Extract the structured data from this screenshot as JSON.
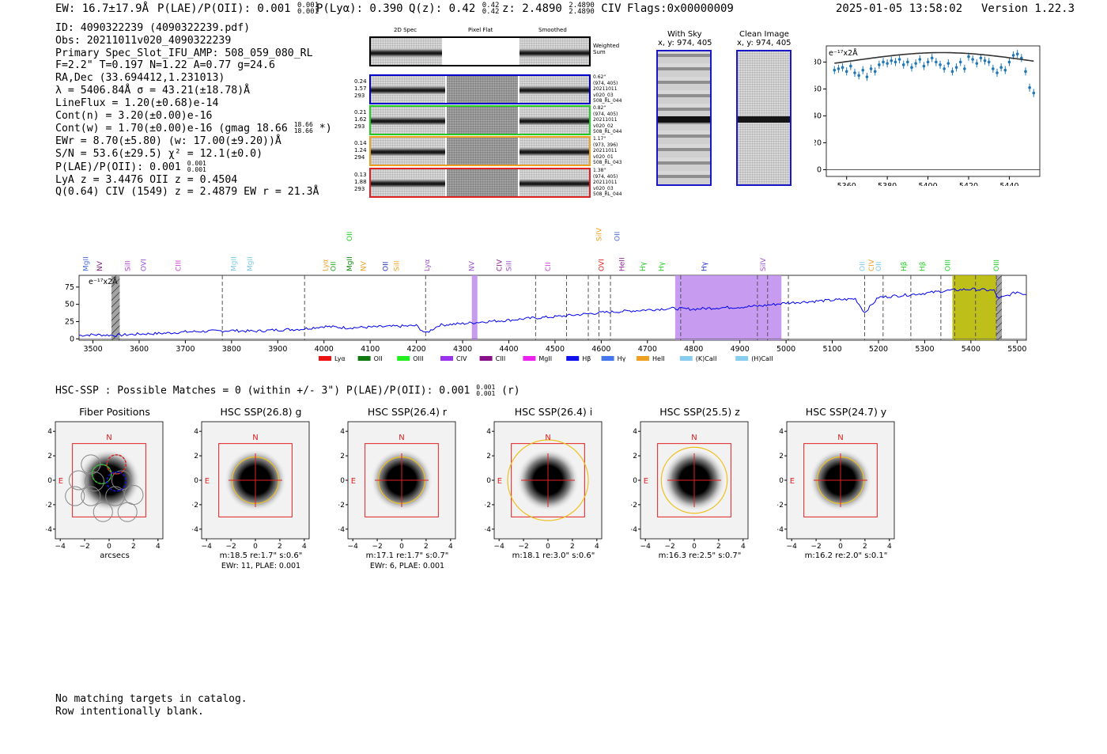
{
  "header": {
    "ew": "EW: 16.7±17.9Å",
    "plae": "P(LAE)/P(OII): 0.001",
    "plae_sup": "0.001",
    "plae_sub": "0.001",
    "plya": "P(Lyα): 0.390",
    "qz": "Q(z): 0.42",
    "qz_sup": "0.42",
    "qz_sub": "0.42",
    "z": "z: 2.4890",
    "z_sup": "2.4890",
    "z_sub": "2.4890",
    "line": "CIV",
    "flags": "Flags:0x00000009",
    "datetime": "2025-01-05 13:58:02",
    "version": "Version 1.22.3"
  },
  "info_lines": [
    "ID: 4090322239 (4090322239.pdf)",
    "Obs: 20211011v020_4090322239",
    "Primary Spec_Slot_IFU_AMP: 508_059_080_RL",
    "F=2.2\"  T=0.197  N=1.22  A=0.77  g=24.6",
    "RA,Dec (33.694412,1.231013)",
    "λ = 5406.84Å  σ = 43.21(±18.78)Å",
    "LineFlux = 1.20(±0.68)e-14",
    "Cont(n) = 3.20(±0.00)e-16",
    "Cont(w) = 1.70(±0.00)e-16 (gmag 18.66",
    "EWr = 8.70(±5.80) (w: 17.00(±9.20))Å",
    "S/N = 53.6(±29.5)  χ² = 12.1(±0.0)",
    "P(LAE)/P(OII): 0.001",
    "LyA z = 3.4476  OII z = 0.4504",
    "Q(0.64) CIV (1549) z = 2.4879  EW r = 21.3Å"
  ],
  "info_extra": {
    "gmag_sup": "18.66",
    "gmag_sub": "18.66",
    "gmag_star": "*)",
    "plae_sup": "0.001",
    "plae_sub": "0.001"
  },
  "spec2d": {
    "col_headers": [
      "2D Spec",
      "Pixel Flat",
      "Smoothed"
    ],
    "weighted_label": "Weighted\nSum",
    "rows": [
      {
        "left": [
          "0.24",
          "1.57",
          "293"
        ],
        "right": [
          "0.62\"",
          "(974, 405)",
          "20211011",
          "v020_03",
          "508_RL_044"
        ],
        "color": "#0000cc"
      },
      {
        "left": [
          "0.21",
          "1.62",
          "293"
        ],
        "right": [
          "0.82\"",
          "(974, 405)",
          "20211011",
          "v020_02",
          "508_RL_044"
        ],
        "color": "#22cc22"
      },
      {
        "left": [
          "0.14",
          "1.24",
          "294"
        ],
        "right": [
          "1.17\"",
          "(973, 396)",
          "20211011",
          "v020_01",
          "508_RL_043"
        ],
        "color": "#f0a020"
      },
      {
        "left": [
          "0.13",
          "1.88",
          "293"
        ],
        "right": [
          "1.38\"",
          "(974, 405)",
          "20211011",
          "v020_03",
          "508_RL_044"
        ],
        "color": "#dd2222"
      }
    ]
  },
  "cutouts": {
    "with_sky": {
      "title": "With Sky",
      "coords": "x, y: 974, 405"
    },
    "clean": {
      "title": "Clean Image",
      "coords": "x, y: 974, 405"
    }
  },
  "zoom_chart": {
    "units_label": "e⁻¹⁷x2Å",
    "x_ticks": [
      "5360",
      "5380",
      "5400",
      "5420",
      "5440"
    ],
    "y_ticks": [
      "0",
      "20",
      "40",
      "60",
      "80"
    ]
  },
  "full_spectrum": {
    "units_label": "e⁻¹⁷x2Å",
    "x_ticks": [
      "3500",
      "3600",
      "3700",
      "3800",
      "3900",
      "4000",
      "4100",
      "4200",
      "4300",
      "4400",
      "4500",
      "4600",
      "4700",
      "4800",
      "4900",
      "5000",
      "5100",
      "5200",
      "5300",
      "5400",
      "5500"
    ],
    "y_ticks": [
      "0",
      "25",
      "50",
      "75"
    ],
    "lines": [
      {
        "name": "MgII",
        "color": "#4a6fd8",
        "x": 3490
      },
      {
        "name": "NV",
        "color": "#7a2080",
        "x": 3520
      },
      {
        "name": "SiII",
        "color": "#b040d0",
        "x": 3580
      },
      {
        "name": "OVI",
        "color": "#9a50d0",
        "x": 3615
      },
      {
        "name": "CIII",
        "color": "#d040d8",
        "x": 3690
      },
      {
        "name": "MgII",
        "color": "#80c8e8",
        "x": 3810
      },
      {
        "name": "MgII",
        "color": "#80c8e8",
        "x": 3845
      },
      {
        "name": "Lyα",
        "color": "#f0a020",
        "x": 4008
      },
      {
        "name": "OII",
        "color": "#22aa22",
        "x": 4025
      },
      {
        "name": "MgII",
        "color": "#118811",
        "x": 4060
      },
      {
        "name": "NV",
        "color": "#f0a020",
        "x": 4090
      },
      {
        "name": "OII",
        "color": "#2030c0",
        "x": 4138
      },
      {
        "name": "SiII",
        "color": "#f0a020",
        "x": 4162
      },
      {
        "name": "Lyα",
        "color": "#a050d0",
        "x": 4228
      },
      {
        "name": "NV",
        "color": "#a050d0",
        "x": 4325
      },
      {
        "name": "CIV",
        "color": "#8a2090",
        "x": 4385
      },
      {
        "name": "SiII",
        "color": "#a050d0",
        "x": 4405
      },
      {
        "name": "CII",
        "color": "#d040d8",
        "x": 4490
      },
      {
        "name": "OVI",
        "color": "#dd2222",
        "x": 4605
      },
      {
        "name": "HeII",
        "color": "#8a2090",
        "x": 4650
      },
      {
        "name": "Hγ",
        "color": "#22cc22",
        "x": 4695
      },
      {
        "name": "Hγ",
        "color": "#22cc22",
        "x": 4735
      },
      {
        "name": "Hγ",
        "color": "#2030c0",
        "x": 4828
      },
      {
        "name": "SiIV",
        "color": "#a050d0",
        "x": 4955
      },
      {
        "name": "OII",
        "color": "#80c8e8",
        "x": 5170
      },
      {
        "name": "CIV",
        "color": "#f0a020",
        "x": 5190
      },
      {
        "name": "OII",
        "color": "#80c8e8",
        "x": 5205
      },
      {
        "name": "Hβ",
        "color": "#22cc22",
        "x": 5260
      },
      {
        "name": "Hβ",
        "color": "#22cc22",
        "x": 5300
      },
      {
        "name": "OIII",
        "color": "#22cc22",
        "x": 5355
      },
      {
        "name": "OIII",
        "color": "#22cc22",
        "x": 5460
      }
    ],
    "top_lines": [
      {
        "name": "OII",
        "color": "#22cc22",
        "x": 4060
      },
      {
        "name": "SiIV",
        "color": "#f0a020",
        "x": 4600
      },
      {
        "name": "OII",
        "color": "#4a6fd8",
        "x": 4640
      }
    ],
    "legend": [
      {
        "label": "Lyα",
        "color": "#ee1111"
      },
      {
        "label": "OII",
        "color": "#117711"
      },
      {
        "label": "OIII",
        "color": "#22ee22"
      },
      {
        "label": "CIV",
        "color": "#9933ee"
      },
      {
        "label": "CIII",
        "color": "#881188"
      },
      {
        "label": "MgII",
        "color": "#ee22ee"
      },
      {
        "label": "Hβ",
        "color": "#1111ee"
      },
      {
        "label": "Hγ",
        "color": "#4477ee"
      },
      {
        "label": "HeII",
        "color": "#f0a020"
      },
      {
        "label": "(K)CaII",
        "color": "#88ccee"
      },
      {
        "label": "(H)CaII",
        "color": "#88ccee"
      }
    ]
  },
  "hsc": {
    "summary": "HSC-SSP : Possible Matches = 0 (within +/- 3\")  P(LAE)/P(OII): 0.001",
    "summary_sup": "0.001",
    "summary_sub": "0.001",
    "summary_band": "(r)",
    "axis_ticks": [
      "-4",
      "-2",
      "0",
      "2",
      "4"
    ],
    "north": "N",
    "east": "E",
    "panels": [
      {
        "title": "Fiber Positions",
        "caption1": "arcsecs",
        "caption2": ""
      },
      {
        "title": "HSC SSP(26.8) g",
        "caption1": "m:18.5  re:1.7\"  s:0.6\"",
        "caption2": "EWr: 11, PLAE: 0.001"
      },
      {
        "title": "HSC SSP(26.4) r",
        "caption1": "m:17.1  re:1.7\"  s:0.7\"",
        "caption2": "EWr: 6, PLAE: 0.001"
      },
      {
        "title": "HSC SSP(26.4) i",
        "caption1": "m:18.1  re:3.0\"  s:0.6\"",
        "caption2": ""
      },
      {
        "title": "HSC SSP(25.5) z",
        "caption1": "m:16.3  re:2.5\"  s:0.7\"",
        "caption2": ""
      },
      {
        "title": "HSC SSP(24.7) y",
        "caption1": "m:16.2  re:2.0\"  s:0.1\"",
        "caption2": ""
      }
    ]
  },
  "footer": [
    "No matching targets in catalog.",
    "Row intentionally blank."
  ],
  "chart_data": [
    {
      "type": "scatter",
      "title": "",
      "ylabel": "e⁻¹⁷x2Å",
      "xlim": [
        5350,
        5455
      ],
      "ylim": [
        -5,
        92
      ],
      "x": [
        5354,
        5356,
        5358,
        5360,
        5362,
        5364,
        5366,
        5368,
        5370,
        5372,
        5374,
        5376,
        5378,
        5380,
        5382,
        5384,
        5386,
        5388,
        5390,
        5392,
        5394,
        5396,
        5398,
        5400,
        5402,
        5404,
        5406,
        5408,
        5410,
        5412,
        5414,
        5416,
        5418,
        5420,
        5422,
        5424,
        5426,
        5428,
        5430,
        5432,
        5434,
        5436,
        5438,
        5440,
        5442,
        5444,
        5446,
        5448,
        5450,
        5452
      ],
      "y": [
        74,
        75,
        76,
        73,
        77,
        72,
        70,
        74,
        69,
        75,
        73,
        78,
        80,
        79,
        81,
        80,
        82,
        78,
        80,
        76,
        79,
        82,
        77,
        80,
        83,
        80,
        78,
        75,
        79,
        73,
        76,
        80,
        75,
        84,
        82,
        79,
        83,
        81,
        80,
        75,
        72,
        76,
        74,
        80,
        85,
        86,
        83,
        73,
        61,
        57
      ],
      "model": {
        "type": "gaussian",
        "center": 5406.84,
        "sigma": 43.21,
        "amplitude": 15,
        "baseline": 72
      }
    },
    {
      "type": "line",
      "title": "",
      "ylabel": "e⁻¹⁷x2Å",
      "xlim": [
        3470,
        5520
      ],
      "ylim": [
        -2,
        92
      ],
      "x": [
        3470,
        3500,
        3550,
        3600,
        3650,
        3700,
        3750,
        3800,
        3850,
        3900,
        3950,
        4000,
        4050,
        4100,
        4150,
        4200,
        4220,
        4250,
        4300,
        4350,
        4400,
        4450,
        4500,
        4550,
        4600,
        4650,
        4700,
        4750,
        4800,
        4850,
        4900,
        4950,
        5000,
        5050,
        5100,
        5150,
        5170,
        5200,
        5250,
        5300,
        5350,
        5400,
        5450,
        5460,
        5500,
        5520
      ],
      "y": [
        5,
        6,
        5,
        7,
        8,
        10,
        11,
        12,
        11,
        13,
        14,
        18,
        16,
        17,
        18,
        19,
        8,
        20,
        22,
        25,
        27,
        30,
        32,
        35,
        38,
        40,
        42,
        44,
        43,
        45,
        46,
        48,
        52,
        54,
        56,
        58,
        38,
        60,
        63,
        66,
        70,
        72,
        70,
        58,
        68,
        64
      ],
      "shaded_regions": [
        {
          "range": [
            3540,
            3558
          ],
          "color": "#999999",
          "hatch": true
        },
        {
          "range": [
            4320,
            4332
          ],
          "color": "#c090ee"
        },
        {
          "range": [
            4760,
            4990
          ],
          "color": "#c090ee"
        },
        {
          "range": [
            5360,
            5455
          ],
          "color": "#b8b800"
        },
        {
          "range": [
            5455,
            5467
          ],
          "color": "#999999",
          "hatch": true
        }
      ],
      "vlines": [
        3780,
        3958,
        4220,
        4458,
        4525,
        4572,
        4595,
        4620,
        4772,
        4938,
        4960,
        5005,
        5170,
        5210,
        5270,
        5335,
        5365,
        5410,
        5455
      ]
    }
  ]
}
